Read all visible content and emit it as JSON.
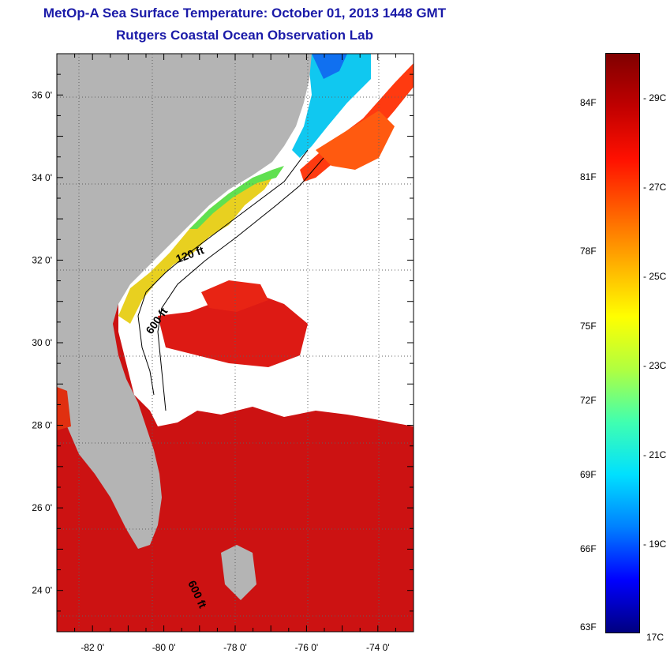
{
  "title": {
    "line1": "MetOp-A Sea Surface Temperature:  October 01, 2013 1448 GMT",
    "line2": "Rutgers Coastal Ocean Observation Lab"
  },
  "map": {
    "lon_range": [
      -83,
      -73
    ],
    "lat_range": [
      23,
      37
    ],
    "lat_ticks": [
      {
        "value": 36,
        "label": "36 0'"
      },
      {
        "value": 34,
        "label": "34 0'"
      },
      {
        "value": 32,
        "label": "32 0'"
      },
      {
        "value": 30,
        "label": "30 0'"
      },
      {
        "value": 28,
        "label": "28 0'"
      },
      {
        "value": 26,
        "label": "26 0'"
      },
      {
        "value": 24,
        "label": "24 0'"
      }
    ],
    "lon_ticks": [
      {
        "value": -82,
        "label": "-82 0'"
      },
      {
        "value": -80,
        "label": "-80 0'"
      },
      {
        "value": -78,
        "label": "-78 0'"
      },
      {
        "value": -76,
        "label": "-76 0'"
      },
      {
        "value": -74,
        "label": "-74 0'"
      }
    ],
    "depth_labels": [
      {
        "text": "120 ft"
      },
      {
        "text": "600 ft"
      },
      {
        "text": "600 ft"
      }
    ],
    "colors": {
      "land": "#b4b4b4",
      "cloud": "#ffffff",
      "warm": "#d21010",
      "gulfstream": "#ff3010"
    }
  },
  "colorbar": {
    "range_c": [
      17,
      30
    ],
    "celsius_ticks": [
      {
        "value": 29,
        "label": "29C"
      },
      {
        "value": 27,
        "label": "27C"
      },
      {
        "value": 25,
        "label": "25C"
      },
      {
        "value": 23,
        "label": "23C"
      },
      {
        "value": 21,
        "label": "21C"
      },
      {
        "value": 19,
        "label": "19C"
      },
      {
        "value": 17,
        "label": "17C"
      }
    ],
    "fahrenheit_ticks": [
      {
        "value": 84,
        "label": "84F"
      },
      {
        "value": 81,
        "label": "81F"
      },
      {
        "value": 78,
        "label": "78F"
      },
      {
        "value": 75,
        "label": "75F"
      },
      {
        "value": 72,
        "label": "72F"
      },
      {
        "value": 69,
        "label": "69F"
      },
      {
        "value": 66,
        "label": "66F"
      },
      {
        "value": 63,
        "label": "63F"
      }
    ],
    "gradient": [
      "#000080",
      "#0000ff",
      "#0080ff",
      "#00e0ff",
      "#40ffb0",
      "#b0ff40",
      "#ffff00",
      "#ffb000",
      "#ff6000",
      "#ff1000",
      "#c00000",
      "#800000"
    ]
  }
}
